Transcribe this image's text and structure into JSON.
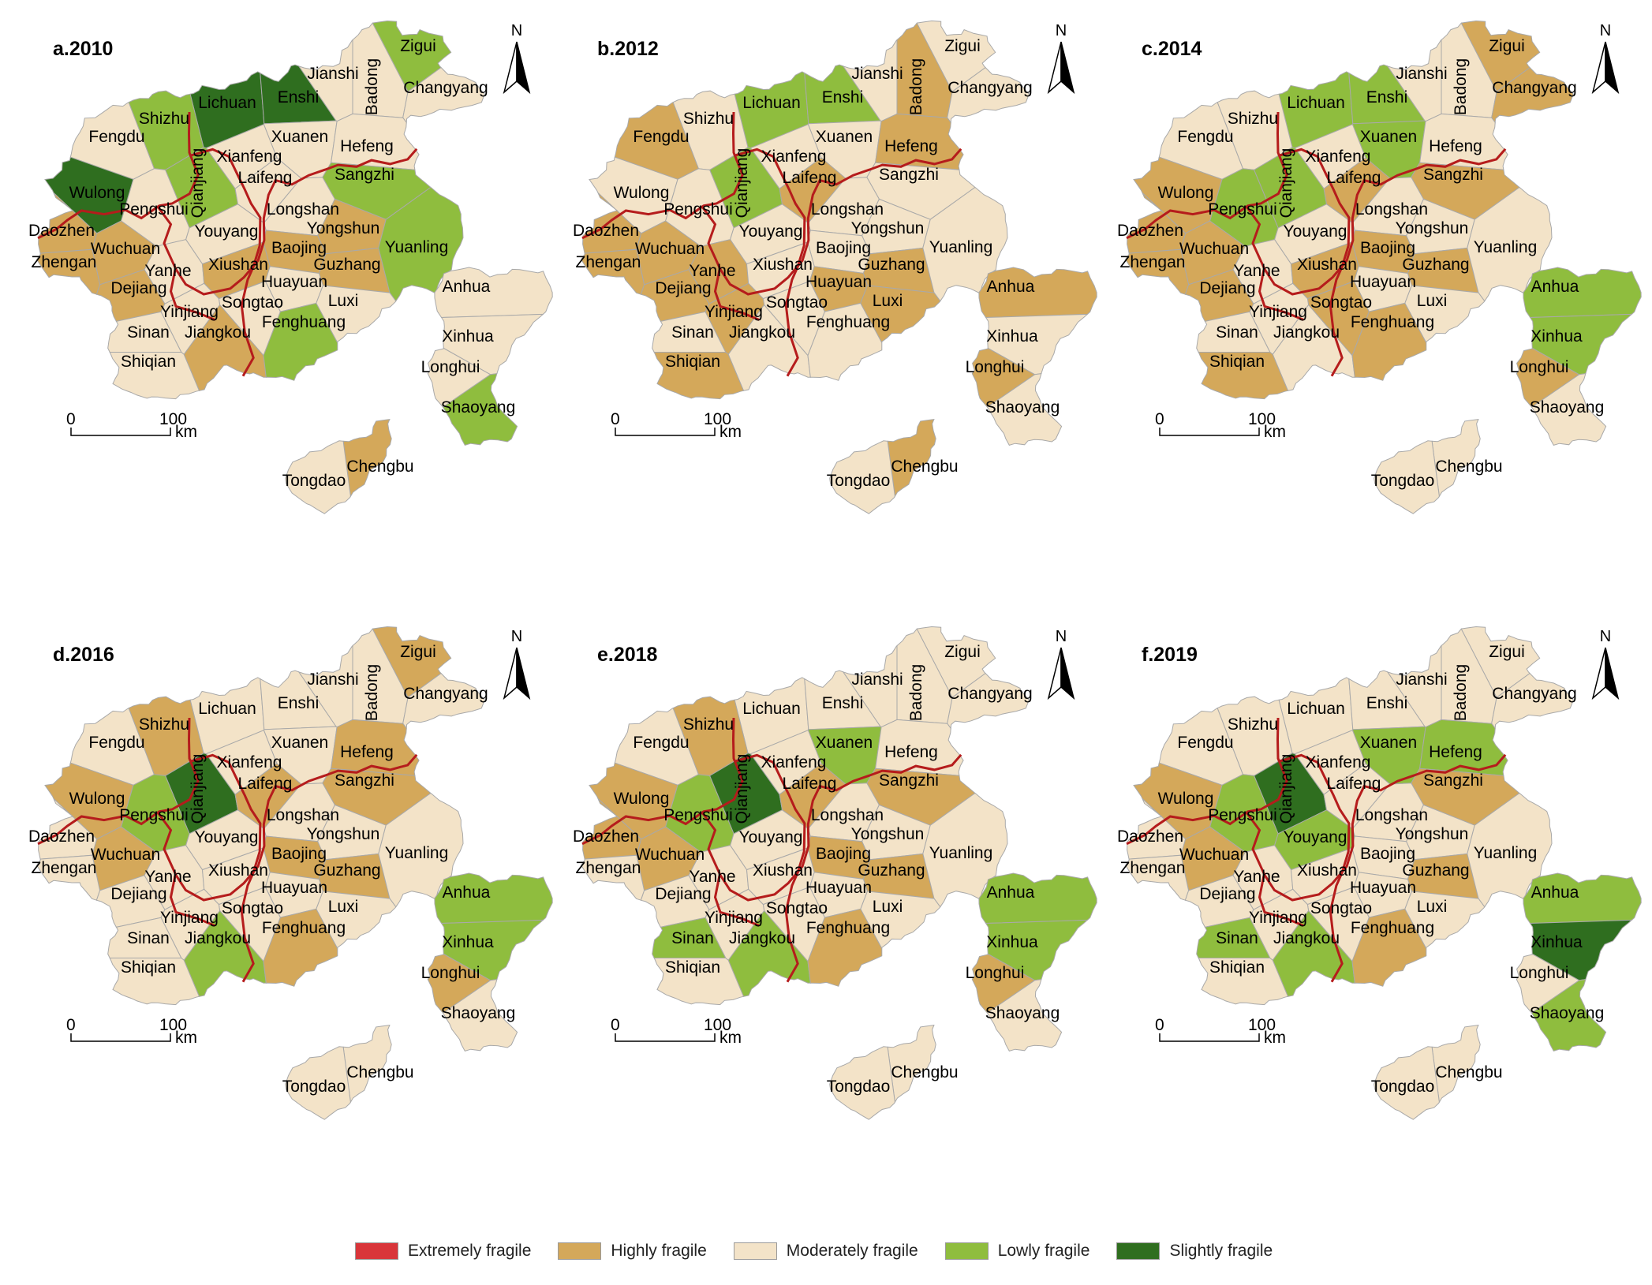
{
  "legend": [
    {
      "key": "E",
      "label": "Extremely fragile",
      "color": "#d9353a"
    },
    {
      "key": "H",
      "label": "Highly fragile",
      "color": "#d4a85a"
    },
    {
      "key": "M",
      "label": "Moderately fragile",
      "color": "#f3e3c8"
    },
    {
      "key": "L",
      "label": "Lowly fragile",
      "color": "#8fbd3e"
    },
    {
      "key": "S",
      "label": "Slightly fragile",
      "color": "#2f6e1f"
    }
  ],
  "boundary_color": "#b51c1c",
  "north_label": "N",
  "scale_bar": {
    "zero": "0",
    "hundred": "100",
    "unit": "km"
  },
  "counties": [
    "Zigui",
    "Jianshi",
    "Badong",
    "Changyang",
    "Lichuan",
    "Enshi",
    "Shizhu",
    "Fengdu",
    "Xuanen",
    "Hefeng",
    "Xianfeng",
    "Qianjiang",
    "Laifeng",
    "Sangzhi",
    "Wulong",
    "Pengshui",
    "Longshan",
    "Daozhen",
    "Youyang",
    "Yongshun",
    "Wuchuan",
    "Zhengan",
    "Baojing",
    "Yanhe",
    "Xiushan",
    "Guzhang",
    "Yuanling",
    "Dejiang",
    "Huayuan",
    "Songtao",
    "Luxi",
    "Anhua",
    "Yinjiang",
    "Sinan",
    "Jiangkou",
    "Fenghuang",
    "Xinhua",
    "Shiqian",
    "Longhui",
    "Shaoyang",
    "Chengbu",
    "Tongdao"
  ],
  "panels": [
    {
      "title": "a.2010",
      "classes": {
        "Zigui": "L",
        "Jianshi": "M",
        "Badong": "M",
        "Changyang": "M",
        "Lichuan": "S",
        "Enshi": "S",
        "Shizhu": "L",
        "Fengdu": "M",
        "Xuanen": "M",
        "Hefeng": "M",
        "Xianfeng": "M",
        "Qianjiang": "L",
        "Laifeng": "M",
        "Sangzhi": "L",
        "Wulong": "S",
        "Pengshui": "M",
        "Longshan": "M",
        "Daozhen": "H",
        "Youyang": "M",
        "Yongshun": "H",
        "Wuchuan": "H",
        "Zhengan": "H",
        "Baojing": "H",
        "Yanhe": "M",
        "Xiushan": "H",
        "Guzhang": "H",
        "Yuanling": "L",
        "Dejiang": "H",
        "Huayuan": "M",
        "Songtao": "M",
        "Luxi": "M",
        "Anhua": "M",
        "Yinjiang": "M",
        "Sinan": "M",
        "Jiangkou": "H",
        "Fenghuang": "L",
        "Xinhua": "M",
        "Shiqian": "M",
        "Longhui": "M",
        "Shaoyang": "L",
        "Chengbu": "H",
        "Tongdao": "M"
      }
    },
    {
      "title": "b.2012",
      "classes": {
        "Zigui": "M",
        "Jianshi": "M",
        "Badong": "H",
        "Changyang": "M",
        "Lichuan": "L",
        "Enshi": "L",
        "Shizhu": "M",
        "Fengdu": "H",
        "Xuanen": "M",
        "Hefeng": "H",
        "Xianfeng": "M",
        "Qianjiang": "L",
        "Laifeng": "H",
        "Sangzhi": "M",
        "Wulong": "M",
        "Pengshui": "M",
        "Longshan": "M",
        "Daozhen": "H",
        "Youyang": "M",
        "Yongshun": "M",
        "Wuchuan": "H",
        "Zhengan": "H",
        "Baojing": "M",
        "Yanhe": "H",
        "Xiushan": "M",
        "Guzhang": "H",
        "Yuanling": "M",
        "Dejiang": "H",
        "Huayuan": "H",
        "Songtao": "M",
        "Luxi": "H",
        "Anhua": "H",
        "Yinjiang": "H",
        "Sinan": "M",
        "Jiangkou": "M",
        "Fenghuang": "M",
        "Xinhua": "M",
        "Shiqian": "H",
        "Longhui": "H",
        "Shaoyang": "M",
        "Chengbu": "H",
        "Tongdao": "M"
      }
    },
    {
      "title": "c.2014",
      "classes": {
        "Zigui": "H",
        "Jianshi": "M",
        "Badong": "M",
        "Changyang": "H",
        "Lichuan": "L",
        "Enshi": "L",
        "Shizhu": "M",
        "Fengdu": "M",
        "Xuanen": "L",
        "Hefeng": "M",
        "Xianfeng": "M",
        "Qianjiang": "L",
        "Laifeng": "H",
        "Sangzhi": "H",
        "Wulong": "H",
        "Pengshui": "L",
        "Longshan": "M",
        "Daozhen": "H",
        "Youyang": "M",
        "Yongshun": "M",
        "Wuchuan": "H",
        "Zhengan": "H",
        "Baojing": "H",
        "Yanhe": "M",
        "Xiushan": "H",
        "Guzhang": "H",
        "Yuanling": "M",
        "Dejiang": "H",
        "Huayuan": "M",
        "Songtao": "H",
        "Luxi": "M",
        "Anhua": "L",
        "Yinjiang": "M",
        "Sinan": "M",
        "Jiangkou": "M",
        "Fenghuang": "H",
        "Xinhua": "L",
        "Shiqian": "H",
        "Longhui": "H",
        "Shaoyang": "M",
        "Chengbu": "M",
        "Tongdao": "M"
      }
    },
    {
      "title": "d.2016",
      "classes": {
        "Zigui": "H",
        "Jianshi": "M",
        "Badong": "M",
        "Changyang": "M",
        "Lichuan": "M",
        "Enshi": "M",
        "Shizhu": "H",
        "Fengdu": "M",
        "Xuanen": "M",
        "Hefeng": "H",
        "Xianfeng": "M",
        "Qianjiang": "S",
        "Laifeng": "H",
        "Sangzhi": "H",
        "Wulong": "H",
        "Pengshui": "L",
        "Longshan": "M",
        "Daozhen": "M",
        "Youyang": "M",
        "Yongshun": "M",
        "Wuchuan": "H",
        "Zhengan": "M",
        "Baojing": "H",
        "Yanhe": "M",
        "Xiushan": "M",
        "Guzhang": "H",
        "Yuanling": "M",
        "Dejiang": "M",
        "Huayuan": "M",
        "Songtao": "M",
        "Luxi": "M",
        "Anhua": "L",
        "Yinjiang": "M",
        "Sinan": "M",
        "Jiangkou": "L",
        "Fenghuang": "H",
        "Xinhua": "L",
        "Shiqian": "M",
        "Longhui": "H",
        "Shaoyang": "M",
        "Chengbu": "M",
        "Tongdao": "M"
      }
    },
    {
      "title": "e.2018",
      "classes": {
        "Zigui": "M",
        "Jianshi": "M",
        "Badong": "M",
        "Changyang": "M",
        "Lichuan": "M",
        "Enshi": "M",
        "Shizhu": "H",
        "Fengdu": "M",
        "Xuanen": "L",
        "Hefeng": "M",
        "Xianfeng": "M",
        "Qianjiang": "S",
        "Laifeng": "H",
        "Sangzhi": "H",
        "Wulong": "H",
        "Pengshui": "L",
        "Longshan": "M",
        "Daozhen": "H",
        "Youyang": "M",
        "Yongshun": "M",
        "Wuchuan": "H",
        "Zhengan": "M",
        "Baojing": "H",
        "Yanhe": "M",
        "Xiushan": "M",
        "Guzhang": "H",
        "Yuanling": "M",
        "Dejiang": "M",
        "Huayuan": "M",
        "Songtao": "M",
        "Luxi": "M",
        "Anhua": "L",
        "Yinjiang": "M",
        "Sinan": "L",
        "Jiangkou": "L",
        "Fenghuang": "H",
        "Xinhua": "L",
        "Shiqian": "M",
        "Longhui": "H",
        "Shaoyang": "M",
        "Chengbu": "M",
        "Tongdao": "M"
      }
    },
    {
      "title": "f.2019",
      "classes": {
        "Zigui": "M",
        "Jianshi": "M",
        "Badong": "M",
        "Changyang": "M",
        "Lichuan": "M",
        "Enshi": "M",
        "Shizhu": "M",
        "Fengdu": "M",
        "Xuanen": "L",
        "Hefeng": "L",
        "Xianfeng": "M",
        "Qianjiang": "S",
        "Laifeng": "M",
        "Sangzhi": "H",
        "Wulong": "H",
        "Pengshui": "L",
        "Longshan": "M",
        "Daozhen": "M",
        "Youyang": "L",
        "Yongshun": "M",
        "Wuchuan": "H",
        "Zhengan": "M",
        "Baojing": "M",
        "Yanhe": "M",
        "Xiushan": "M",
        "Guzhang": "H",
        "Yuanling": "M",
        "Dejiang": "M",
        "Huayuan": "M",
        "Songtao": "M",
        "Luxi": "M",
        "Anhua": "L",
        "Yinjiang": "M",
        "Sinan": "L",
        "Jiangkou": "L",
        "Fenghuang": "H",
        "Xinhua": "S",
        "Shiqian": "M",
        "Longhui": "M",
        "Shaoyang": "L",
        "Chengbu": "M",
        "Tongdao": "M"
      }
    }
  ]
}
